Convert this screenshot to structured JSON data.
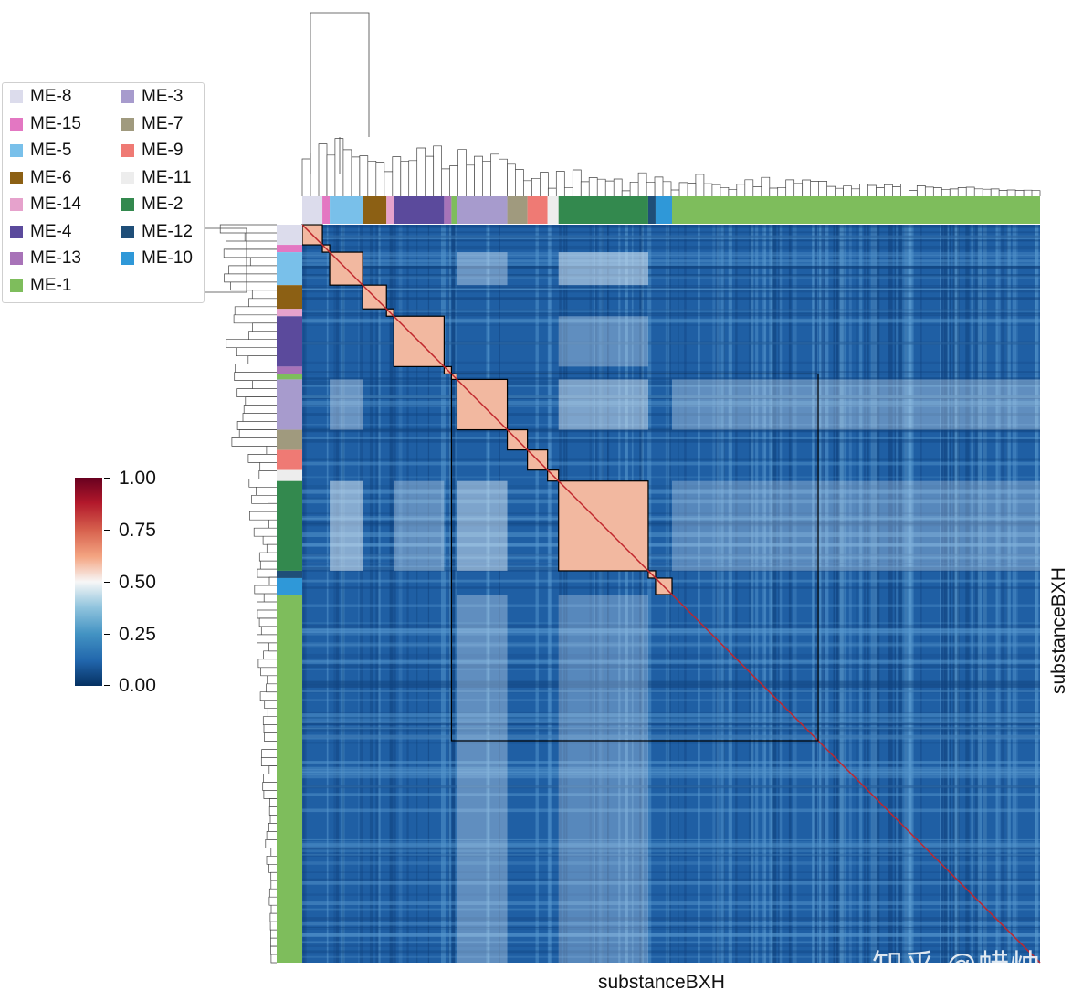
{
  "chart_data": {
    "type": "heatmap",
    "title": "",
    "xlabel": "substanceBXH",
    "ylabel": "substanceBXH",
    "colormap": [
      "#053061",
      "#2166ac",
      "#4393c3",
      "#92c5de",
      "#f7f7f7",
      "#f4a582",
      "#d6604d",
      "#b2182b",
      "#67001f"
    ],
    "value_range": [
      0.0,
      1.0
    ],
    "colorbar_ticks": [
      "1.00",
      "0.75",
      "0.50",
      "0.25",
      "0.00"
    ],
    "legend": [
      {
        "label": "ME-8",
        "color": "#dcdcec"
      },
      {
        "label": "ME-15",
        "color": "#e377c2"
      },
      {
        "label": "ME-5",
        "color": "#79c0ea"
      },
      {
        "label": "ME-6",
        "color": "#8c6014"
      },
      {
        "label": "ME-14",
        "color": "#e6a2cc"
      },
      {
        "label": "ME-4",
        "color": "#5b4a9c"
      },
      {
        "label": "ME-13",
        "color": "#a873b8"
      },
      {
        "label": "ME-1",
        "color": "#7ebd5c"
      },
      {
        "label": "ME-3",
        "color": "#a79bcd"
      },
      {
        "label": "ME-7",
        "color": "#a09a7e"
      },
      {
        "label": "ME-9",
        "color": "#ef7a74"
      },
      {
        "label": "ME-11",
        "color": "#ededed"
      },
      {
        "label": "ME-2",
        "color": "#33894e"
      },
      {
        "label": "ME-12",
        "color": "#1f4e78"
      },
      {
        "label": "ME-10",
        "color": "#2f98d8"
      }
    ],
    "modules_in_order": [
      {
        "label": "ME-8",
        "size": 22
      },
      {
        "label": "ME-15",
        "size": 8
      },
      {
        "label": "ME-5",
        "size": 36
      },
      {
        "label": "ME-6",
        "size": 26
      },
      {
        "label": "ME-14",
        "size": 8
      },
      {
        "label": "ME-4",
        "size": 55
      },
      {
        "label": "ME-13",
        "size": 8
      },
      {
        "label": "ME-1",
        "size": 6
      },
      {
        "label": "ME-3",
        "size": 55
      },
      {
        "label": "ME-7",
        "size": 22
      },
      {
        "label": "ME-9",
        "size": 22
      },
      {
        "label": "ME-11",
        "size": 12
      },
      {
        "label": "ME-2",
        "size": 98
      },
      {
        "label": "ME-12",
        "size": 8
      },
      {
        "label": "ME-10",
        "size": 18
      },
      {
        "label": "ME-1",
        "size": 402
      }
    ],
    "legend_placement": "upper-left",
    "grid": false
  },
  "watermark": "知乎 @蜡烛"
}
